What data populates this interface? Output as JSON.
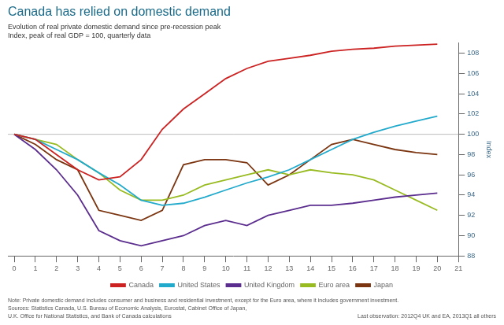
{
  "chart_data": {
    "type": "line",
    "title": "Canada has relied on domestic demand",
    "subtitle": [
      "Evolution of real private domestic demand since pre-recession peak",
      "Index, peak of real GDP = 100, quarterly data"
    ],
    "y_label": "Index",
    "notes": [
      "Note: Private domestic demand includes consumer and business and residential investment, except for the Euro area, where it includes government investment.",
      "Sources: Statistics Canada, U.S. Bureau of Economic Analysis, Eurostat, Cabinet Office of Japan,",
      "U.K. Office for National Statistics, and Bank of Canada calculations"
    ],
    "last_observation": "Last observation: 2012Q4 UK and EA, 2013Q1 all others",
    "x": [
      0,
      1,
      2,
      3,
      4,
      5,
      6,
      7,
      8,
      9,
      10,
      11,
      12,
      13,
      14,
      15,
      16,
      17,
      18,
      19,
      20
    ],
    "series": [
      {
        "name": "Canada",
        "color": "#cc2222",
        "values": [
          100,
          99.5,
          98.0,
          96.5,
          95.5,
          95.8,
          97.5,
          100.5,
          102.5,
          104.0,
          105.5,
          106.5,
          107.2,
          107.5,
          107.8,
          108.2,
          108.4,
          108.5,
          108.7,
          108.8,
          108.9
        ]
      },
      {
        "name": "United States",
        "color": "#22aacc",
        "values": [
          100,
          99.5,
          98.5,
          97.5,
          96.2,
          95.0,
          93.5,
          93.0,
          93.2,
          93.8,
          94.5,
          95.2,
          95.8,
          96.5,
          97.5,
          98.5,
          99.5,
          100.2,
          100.8,
          101.3,
          101.8
        ]
      },
      {
        "name": "United Kingdom",
        "color": "#5b2d8e",
        "values": [
          100,
          98.5,
          96.5,
          94.0,
          90.5,
          89.5,
          89.0,
          89.5,
          90.0,
          91.0,
          91.5,
          91.0,
          92.0,
          92.5,
          93.0,
          93.0,
          93.2,
          93.5,
          93.8,
          94.0,
          94.2
        ]
      },
      {
        "name": "Euro area",
        "color": "#99bb22",
        "values": [
          100,
          99.5,
          99.0,
          97.5,
          96.2,
          94.5,
          93.5,
          93.5,
          94.0,
          95.0,
          95.5,
          96.0,
          96.5,
          96.0,
          96.5,
          96.2,
          96.0,
          95.5,
          94.5,
          93.5,
          92.5
        ]
      },
      {
        "name": "Japan",
        "color": "#7b3510",
        "values": [
          100,
          99.0,
          97.5,
          96.5,
          92.5,
          92.0,
          91.5,
          92.5,
          97.0,
          97.5,
          97.5,
          97.2,
          95.0,
          96.0,
          97.5,
          99.0,
          99.5,
          99.0,
          98.5,
          98.2,
          98.0
        ]
      }
    ],
    "xlim": [
      -0.3,
      21
    ],
    "xticks": [
      0,
      1,
      2,
      3,
      4,
      5,
      6,
      7,
      8,
      9,
      10,
      11,
      12,
      13,
      14,
      15,
      16,
      17,
      18,
      19,
      20,
      21
    ],
    "ylim": [
      88,
      109
    ],
    "yticks": [
      88,
      90,
      92,
      94,
      96,
      98,
      100,
      102,
      104,
      106,
      108
    ],
    "reference_line": 100,
    "legend": "bottom",
    "grid": false
  }
}
